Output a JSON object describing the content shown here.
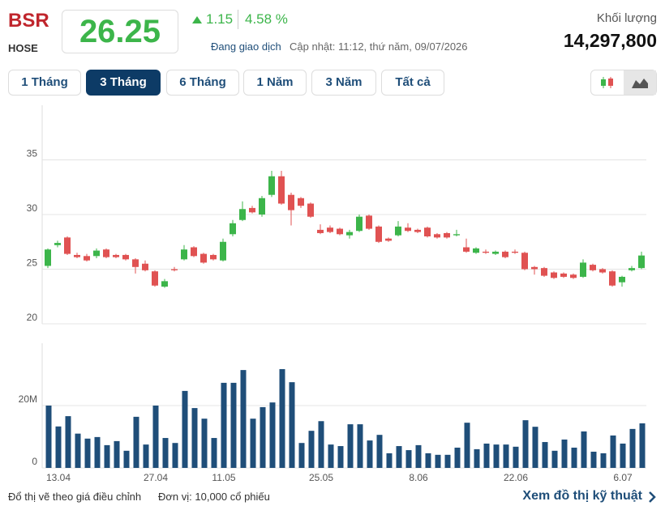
{
  "header": {
    "symbol": "BSR",
    "exchange": "HOSE",
    "price": "26.25",
    "change": "1.15",
    "change_pct": "4.58 %",
    "status": "Đang giao dịch",
    "updated": "Cập nhật: 11:12, thứ năm, 09/07/2026",
    "volume_label": "Khối lượng",
    "volume": "14,297,800"
  },
  "ranges": [
    "1 Tháng",
    "3 Tháng",
    "6 Tháng",
    "1 Năm",
    "3 Năm",
    "Tất cả"
  ],
  "footer": {
    "note": "Đổ thị vẽ theo giá điều chỉnh",
    "unit": "Đơn vị: 10,000 cổ phiếu",
    "link": "Xem đồ thị kỹ thuật"
  },
  "chart_data": [
    {
      "type": "candlestick",
      "up_color": "#3cb54a",
      "down_color": "#e05252",
      "ylim": [
        20,
        40
      ],
      "yticks": [
        20,
        25,
        30,
        35
      ],
      "grid": true,
      "open": [
        25.3,
        27.2,
        27.9,
        26.3,
        26.2,
        26.2,
        26.8,
        26.3,
        26.3,
        25.9,
        25.5,
        24.8,
        23.4,
        25.0,
        25.9,
        27.0,
        26.4,
        26.3,
        25.8,
        28.2,
        29.5,
        30.6,
        30.0,
        31.8,
        33.5,
        31.8,
        31.5,
        31.0,
        28.6,
        28.8,
        28.7,
        28.1,
        28.5,
        29.9,
        28.9,
        27.8,
        28.1,
        28.8,
        28.6,
        28.8,
        28.2,
        28.3,
        28.1,
        27.0,
        26.5,
        26.6,
        26.4,
        26.6,
        26.6,
        26.5,
        25.2,
        25.1,
        24.7,
        24.6,
        24.5,
        24.3,
        25.4,
        25.0,
        24.8,
        23.8,
        24.9,
        25.1
      ],
      "high": [
        26.9,
        27.6,
        28.0,
        26.5,
        26.4,
        26.9,
        26.9,
        26.4,
        26.4,
        26.0,
        25.8,
        24.9,
        24.1,
        25.2,
        27.2,
        27.1,
        26.5,
        26.4,
        27.8,
        29.5,
        31.2,
        30.8,
        31.7,
        34.0,
        34.0,
        32.0,
        31.6,
        31.1,
        29.1,
        29.0,
        28.8,
        28.6,
        30.0,
        30.0,
        29.0,
        27.9,
        29.4,
        29.2,
        28.7,
        28.9,
        28.3,
        28.4,
        28.6,
        27.8,
        27.0,
        26.8,
        26.7,
        26.7,
        26.8,
        26.6,
        25.3,
        25.2,
        24.8,
        24.7,
        24.6,
        25.9,
        25.5,
        25.1,
        24.9,
        24.4,
        25.3,
        26.6
      ],
      "low": [
        25.1,
        27.0,
        26.3,
        26.0,
        25.7,
        26.0,
        26.0,
        26.0,
        25.8,
        24.6,
        24.8,
        23.4,
        23.3,
        24.8,
        25.8,
        26.1,
        25.5,
        25.8,
        25.7,
        28.0,
        29.4,
        30.1,
        29.8,
        31.6,
        30.9,
        29.0,
        30.6,
        29.7,
        28.2,
        28.3,
        28.1,
        27.8,
        28.4,
        28.6,
        27.4,
        27.5,
        28.0,
        28.4,
        28.3,
        27.9,
        27.8,
        27.8,
        28.0,
        26.5,
        26.4,
        26.4,
        26.3,
        26.0,
        26.4,
        24.9,
        24.5,
        24.3,
        24.1,
        24.2,
        24.1,
        24.2,
        24.8,
        24.6,
        23.4,
        23.4,
        24.8,
        25.0
      ],
      "close": [
        26.8,
        27.4,
        26.4,
        26.1,
        25.8,
        26.7,
        26.1,
        26.1,
        25.9,
        25.2,
        24.9,
        23.5,
        23.9,
        24.9,
        26.8,
        26.2,
        25.6,
        25.9,
        27.5,
        29.2,
        30.5,
        30.2,
        31.5,
        33.5,
        31.0,
        30.4,
        30.8,
        29.8,
        28.3,
        28.4,
        28.2,
        28.4,
        29.8,
        28.7,
        27.5,
        27.6,
        28.9,
        28.5,
        28.4,
        28.0,
        27.9,
        27.9,
        28.2,
        26.6,
        26.9,
        26.5,
        26.6,
        26.1,
        26.5,
        25.0,
        25.0,
        24.4,
        24.2,
        24.3,
        24.2,
        25.6,
        24.9,
        24.7,
        23.5,
        24.3,
        25.1,
        26.25
      ]
    },
    {
      "type": "bar",
      "color": "#1f4e79",
      "ylim": [
        0,
        40
      ],
      "yticks": [
        0,
        {
          "value": 20,
          "label": "20M"
        }
      ],
      "grid": true,
      "categories": [
        null,
        "13.04",
        null,
        null,
        null,
        null,
        null,
        null,
        null,
        null,
        null,
        "27.04",
        null,
        null,
        null,
        null,
        null,
        null,
        "11.05",
        null,
        null,
        null,
        null,
        null,
        null,
        null,
        null,
        null,
        "25.05",
        null,
        null,
        null,
        null,
        null,
        null,
        null,
        null,
        null,
        "8.06",
        null,
        null,
        null,
        null,
        null,
        null,
        null,
        null,
        null,
        "22.06",
        null,
        null,
        null,
        null,
        null,
        null,
        null,
        null,
        null,
        null,
        "6.07",
        null,
        null
      ],
      "values": [
        20,
        13.3,
        16.6,
        11,
        9.4,
        9.9,
        7.3,
        8.6,
        5.5,
        16.4,
        7.5,
        20,
        9.6,
        8,
        24.7,
        19.2,
        15.8,
        9.6,
        27.3,
        27.3,
        31.4,
        15.8,
        19.5,
        21,
        31.7,
        27.5,
        8,
        11.9,
        15,
        7.5,
        7,
        14,
        14,
        8.8,
        10.6,
        4.7,
        7,
        5.7,
        7.3,
        4.7,
        4.2,
        4.2,
        6.5,
        14.5,
        6,
        7.8,
        7.5,
        7.5,
        6.8,
        15.3,
        13.2,
        8.3,
        5.5,
        9.1,
        6.5,
        11.7,
        5.2,
        4.7,
        10.4,
        7.8,
        12.5,
        14.3
      ]
    }
  ]
}
